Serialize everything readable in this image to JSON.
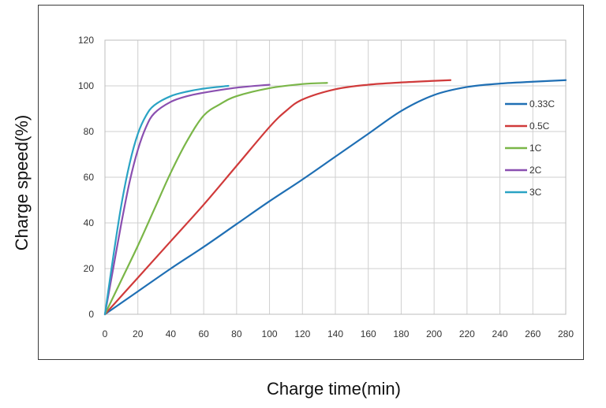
{
  "chart_data": {
    "type": "line",
    "title": "",
    "xlabel": "Charge time(min)",
    "ylabel": "Charge speed(%)",
    "xlim": [
      0,
      280
    ],
    "ylim": [
      0,
      120
    ],
    "xticks": [
      "0",
      "20",
      "40",
      "60",
      "80",
      "100",
      "120",
      "140",
      "160",
      "180",
      "200",
      "220",
      "240",
      "260",
      "280"
    ],
    "yticks": [
      "0",
      "20",
      "40",
      "60",
      "80",
      "100",
      "120"
    ],
    "grid": true,
    "legend_position": "right",
    "series": [
      {
        "name": "0.33C",
        "color": "#1f6fb4",
        "x": [
          0,
          20,
          40,
          60,
          80,
          100,
          120,
          140,
          160,
          180,
          200,
          220,
          240,
          260,
          280
        ],
        "y": [
          0,
          10,
          20,
          29.5,
          39.5,
          49.5,
          59,
          69,
          79,
          89,
          96,
          99.5,
          101,
          101.8,
          102.5
        ]
      },
      {
        "name": "0.5C",
        "color": "#d03a3a",
        "x": [
          0,
          20,
          40,
          60,
          80,
          100,
          110,
          120,
          140,
          160,
          180,
          200,
          210
        ],
        "y": [
          0,
          16,
          32,
          48,
          65,
          82,
          89,
          94,
          98.5,
          100.5,
          101.5,
          102.2,
          102.5
        ]
      },
      {
        "name": "1C",
        "color": "#7ab648",
        "x": [
          0,
          10,
          20,
          30,
          40,
          50,
          60,
          70,
          80,
          100,
          120,
          135
        ],
        "y": [
          0,
          15,
          30,
          46,
          62,
          76,
          87,
          92,
          95.5,
          99,
          100.8,
          101.3
        ]
      },
      {
        "name": "2C",
        "color": "#8a4fb0",
        "x": [
          0,
          5,
          10,
          15,
          20,
          25,
          30,
          40,
          50,
          60,
          80,
          100
        ],
        "y": [
          0,
          20,
          40,
          58,
          72,
          82,
          88,
          93,
          95.5,
          97,
          99.2,
          100.5
        ]
      },
      {
        "name": "3C",
        "color": "#2aa3c4",
        "x": [
          0,
          5,
          10,
          15,
          20,
          25,
          30,
          40,
          50,
          60,
          75
        ],
        "y": [
          0,
          25,
          48,
          66,
          79,
          87,
          91.5,
          95.5,
          97.5,
          98.8,
          100
        ]
      }
    ]
  }
}
